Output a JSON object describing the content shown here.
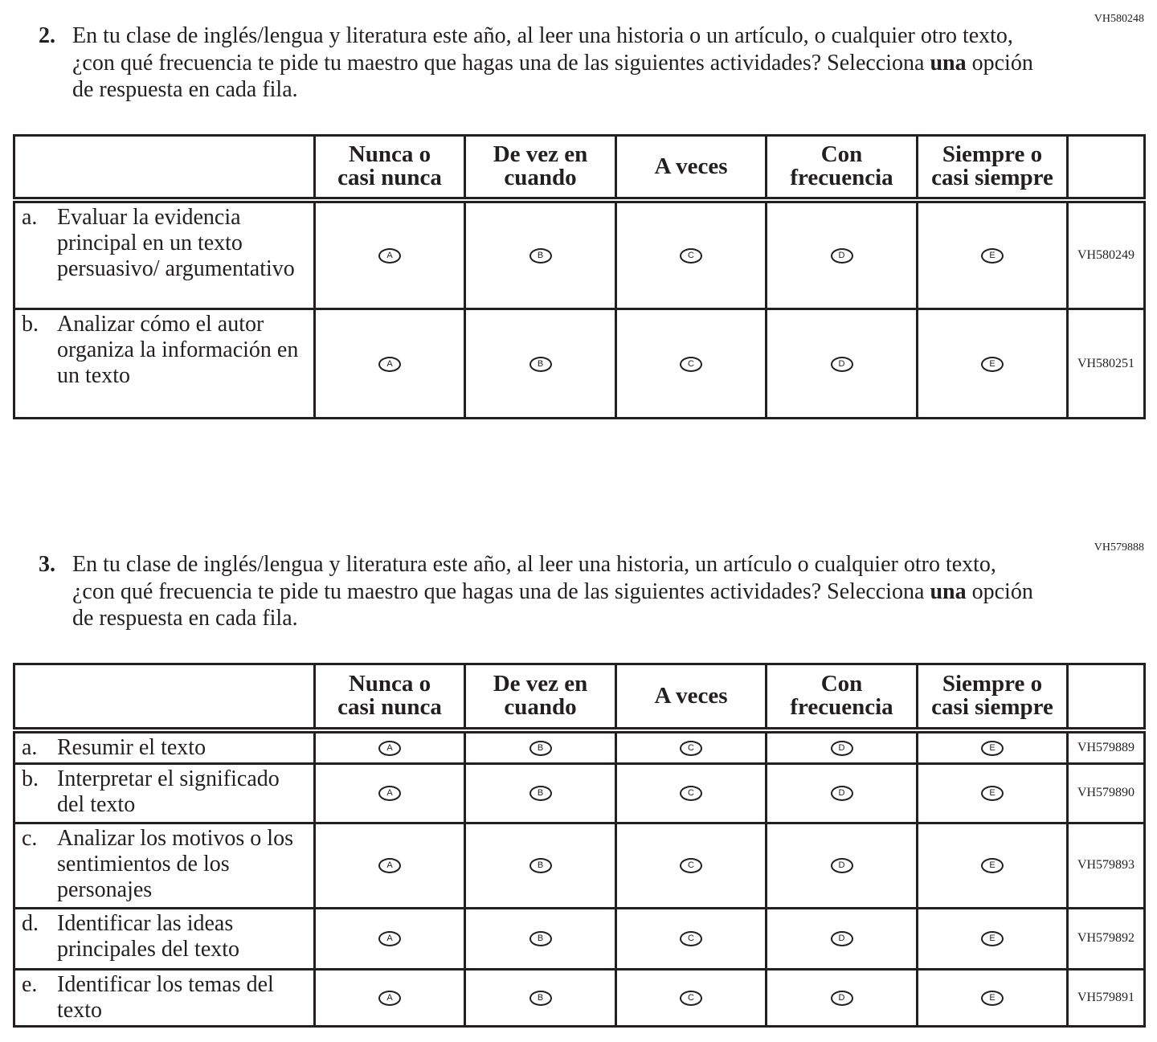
{
  "headers": [
    "",
    "Nunca o\ncasi nunca",
    "De vez en\ncuando",
    "A veces",
    "Con\nfrecuencia",
    "Siempre o\ncasi siempre",
    ""
  ],
  "bubbles": [
    "A",
    "B",
    "C",
    "D",
    "E"
  ],
  "questions": [
    {
      "id": "VH580248",
      "number": "2.",
      "text_before": "En tu clase de inglés/lengua y literatura este año, al leer una historia o un artículo, o cualquier otro texto, ¿con qué frecuencia te pide tu maestro que hagas una de las siguientes actividades? Selecciona ",
      "text_bold": "una",
      "text_after": " opción de respuesta en cada fila.",
      "items": [
        {
          "letter": "a.",
          "text": "Evaluar la evidencia principal en un texto persuasivo/ argumentativo",
          "code": "VH580249"
        },
        {
          "letter": "b.",
          "text": "Analizar cómo el autor organiza la información en un texto",
          "code": "VH580251"
        }
      ]
    },
    {
      "id": "VH579888",
      "number": "3.",
      "text_before": "En tu clase de inglés/lengua y literatura este año, al leer una historia, un artículo o cualquier otro texto, ¿con qué frecuencia te pide tu maestro que hagas una de las siguientes actividades? Selecciona ",
      "text_bold": "una",
      "text_after": " opción de respuesta en cada fila.",
      "items": [
        {
          "letter": "a.",
          "text": "Resumir el texto",
          "code": "VH579889"
        },
        {
          "letter": "b.",
          "text": "Interpretar el significado del texto",
          "code": "VH579890"
        },
        {
          "letter": "c.",
          "text": "Analizar los motivos o los sentimientos de los personajes",
          "code": "VH579893"
        },
        {
          "letter": "d.",
          "text": "Identificar las ideas principales del texto",
          "code": "VH579892"
        },
        {
          "letter": "e.",
          "text": "Identificar los temas del texto",
          "code": "VH579891"
        }
      ]
    }
  ]
}
